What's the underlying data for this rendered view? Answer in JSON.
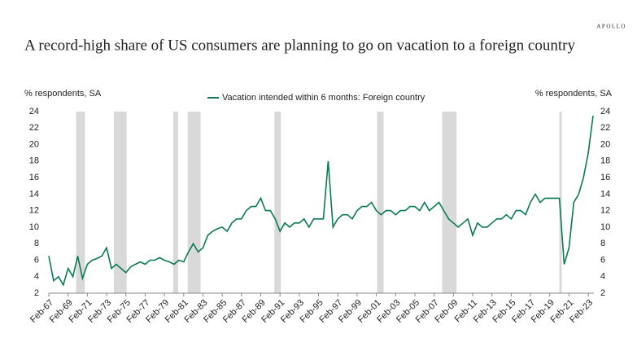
{
  "brand": "APOLLO",
  "chart_data": {
    "type": "line",
    "title": "A record-high share of US consumers are planning to go on vacation to a foreign country",
    "y_label": "% respondents, SA",
    "y2_label": "% respondents, SA",
    "x": [
      "1967-02",
      "1967-08",
      "1968-02",
      "1968-08",
      "1969-02",
      "1969-08",
      "1970-02",
      "1970-08",
      "1971-02",
      "1971-08",
      "1972-02",
      "1972-08",
      "1973-02",
      "1973-08",
      "1974-02",
      "1974-08",
      "1975-02",
      "1975-08",
      "1976-02",
      "1976-08",
      "1977-02",
      "1977-08",
      "1978-02",
      "1978-08",
      "1979-02",
      "1979-08",
      "1980-02",
      "1980-08",
      "1981-02",
      "1981-08",
      "1982-02",
      "1982-08",
      "1983-02",
      "1983-08",
      "1984-02",
      "1984-08",
      "1985-02",
      "1985-08",
      "1986-02",
      "1986-08",
      "1987-02",
      "1987-08",
      "1988-02",
      "1988-08",
      "1989-02",
      "1989-08",
      "1990-02",
      "1990-08",
      "1991-02",
      "1991-08",
      "1992-02",
      "1992-08",
      "1993-02",
      "1993-08",
      "1994-02",
      "1994-08",
      "1995-02",
      "1995-08",
      "1996-02",
      "1996-08",
      "1997-02",
      "1997-08",
      "1998-02",
      "1998-08",
      "1999-02",
      "1999-08",
      "2000-02",
      "2000-08",
      "2001-02",
      "2001-08",
      "2002-02",
      "2002-08",
      "2003-02",
      "2003-08",
      "2004-02",
      "2004-08",
      "2005-02",
      "2005-08",
      "2006-02",
      "2006-08",
      "2007-02",
      "2007-08",
      "2008-02",
      "2008-08",
      "2009-02",
      "2009-08",
      "2010-02",
      "2010-08",
      "2011-02",
      "2011-08",
      "2012-02",
      "2012-08",
      "2013-02",
      "2013-08",
      "2014-02",
      "2014-08",
      "2015-02",
      "2015-08",
      "2016-02",
      "2016-08",
      "2017-02",
      "2017-08",
      "2018-02",
      "2018-08",
      "2019-02",
      "2019-08",
      "2020-02",
      "2020-08",
      "2021-02",
      "2021-08",
      "2022-02",
      "2022-08",
      "2023-02",
      "2023-08"
    ],
    "series": [
      {
        "name": "Vacation intended within 6 months: Foreign country",
        "color": "#0b7a55",
        "values": [
          6.5,
          3.5,
          4,
          3,
          5,
          4,
          6.5,
          3.8,
          5.5,
          6,
          6.2,
          6.5,
          7.5,
          5,
          5.5,
          5,
          4.5,
          5.2,
          5.5,
          5.8,
          5.5,
          6,
          6,
          6.3,
          6,
          5.8,
          5.5,
          6,
          5.8,
          7,
          8,
          7,
          7.5,
          9,
          9.5,
          9.8,
          10,
          9.5,
          10.5,
          11,
          11,
          12,
          12.5,
          12.5,
          13.5,
          12,
          12,
          11,
          9.5,
          10.5,
          10,
          10.5,
          10.5,
          11,
          10,
          11,
          11,
          11,
          18,
          10,
          11,
          11.5,
          11.5,
          11,
          12,
          12.5,
          12.5,
          13,
          12,
          11.5,
          12,
          12,
          11.5,
          12,
          12,
          12.5,
          12.5,
          12,
          13,
          12,
          12.5,
          13,
          12,
          11,
          10.5,
          10,
          10.5,
          11,
          9,
          10.5,
          10,
          10,
          10.5,
          11,
          11,
          11.5,
          11,
          12,
          12,
          11.5,
          13,
          14,
          13,
          13.5,
          13.5,
          13.5,
          13.5,
          5.5,
          7.5,
          13,
          14,
          16,
          19,
          23.5
        ]
      }
    ],
    "recessions": [
      [
        "1969-12",
        "1970-11"
      ],
      [
        "1973-11",
        "1975-03"
      ],
      [
        "1980-01",
        "1980-07"
      ],
      [
        "1981-07",
        "1982-11"
      ],
      [
        "1990-07",
        "1991-03"
      ],
      [
        "2001-03",
        "2001-11"
      ],
      [
        "2007-12",
        "2009-06"
      ],
      [
        "2020-02",
        "2020-04"
      ]
    ],
    "recession_color": "#d9d9d9",
    "xlim": [
      "1967-02",
      "2023-09"
    ],
    "xticks": [
      {
        "value": "1967-02",
        "label": "Feb-67"
      },
      {
        "value": "1969-02",
        "label": "Feb-69"
      },
      {
        "value": "1971-02",
        "label": "Feb-71"
      },
      {
        "value": "1973-02",
        "label": "Feb-73"
      },
      {
        "value": "1975-02",
        "label": "Feb-75"
      },
      {
        "value": "1977-02",
        "label": "Feb-77"
      },
      {
        "value": "1979-02",
        "label": "Feb-79"
      },
      {
        "value": "1981-02",
        "label": "Feb-81"
      },
      {
        "value": "1983-02",
        "label": "Feb-83"
      },
      {
        "value": "1985-02",
        "label": "Feb-85"
      },
      {
        "value": "1987-02",
        "label": "Feb-87"
      },
      {
        "value": "1989-02",
        "label": "Feb-89"
      },
      {
        "value": "1991-02",
        "label": "Feb-91"
      },
      {
        "value": "1993-02",
        "label": "Feb-93"
      },
      {
        "value": "1995-02",
        "label": "Feb-95"
      },
      {
        "value": "1997-02",
        "label": "Feb-97"
      },
      {
        "value": "1999-02",
        "label": "Feb-99"
      },
      {
        "value": "2001-02",
        "label": "Feb-01"
      },
      {
        "value": "2003-02",
        "label": "Feb-03"
      },
      {
        "value": "2005-02",
        "label": "Feb-05"
      },
      {
        "value": "2007-02",
        "label": "Feb-07"
      },
      {
        "value": "2009-02",
        "label": "Feb-09"
      },
      {
        "value": "2011-02",
        "label": "Feb-11"
      },
      {
        "value": "2013-02",
        "label": "Feb-13"
      },
      {
        "value": "2015-02",
        "label": "Feb-15"
      },
      {
        "value": "2017-02",
        "label": "Feb-17"
      },
      {
        "value": "2019-02",
        "label": "Feb-19"
      },
      {
        "value": "2021-02",
        "label": "Feb-21"
      },
      {
        "value": "2023-02",
        "label": "Feb-23"
      }
    ],
    "ylim": [
      2,
      24
    ],
    "yticks": [
      2,
      4,
      6,
      8,
      10,
      12,
      14,
      16,
      18,
      20,
      22,
      24
    ],
    "y2lim": [
      2,
      24
    ],
    "y2ticks": [
      2,
      4,
      6,
      8,
      10,
      12,
      14,
      16,
      18,
      20,
      22,
      24
    ],
    "legend": "top"
  }
}
